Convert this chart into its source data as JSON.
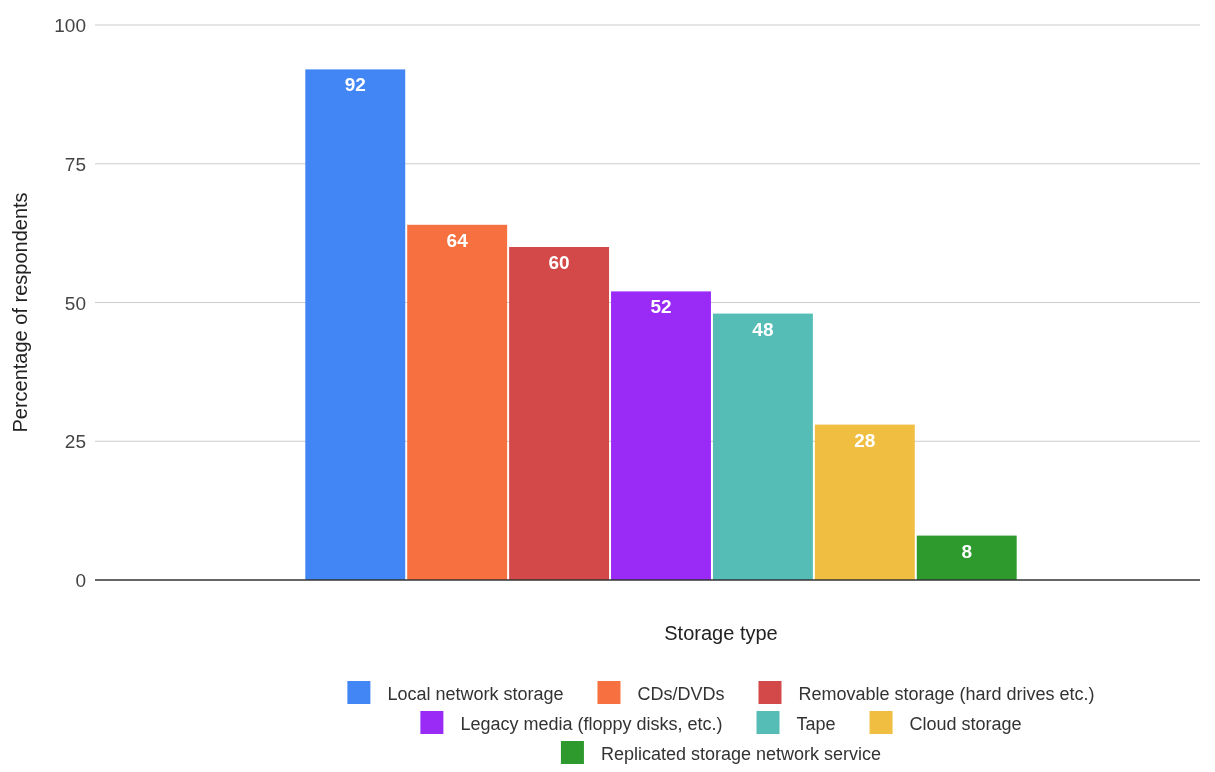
{
  "chart_data": {
    "type": "bar",
    "xlabel": "Storage type",
    "ylabel": "Percentage of respondents",
    "categories": [
      null
    ],
    "series": [
      {
        "name": "Local network storage",
        "color": "#4285f4",
        "values": [
          92
        ]
      },
      {
        "name": "CDs/DVDs",
        "color": "#f7703f",
        "values": [
          64
        ]
      },
      {
        "name": "Removable storage (hard drives etc.)",
        "color": "#d34848",
        "values": [
          60
        ]
      },
      {
        "name": "Legacy media (floppy disks, etc.)",
        "color": "#9a2bf6",
        "values": [
          52
        ]
      },
      {
        "name": "Tape",
        "color": "#55bdb6",
        "values": [
          48
        ]
      },
      {
        "name": "Cloud storage",
        "color": "#f0bf42",
        "values": [
          28
        ]
      },
      {
        "name": "Replicated storage network service",
        "color": "#2e9a2e",
        "values": [
          8
        ]
      }
    ],
    "ylim": [
      0,
      100
    ],
    "yticks": [
      0,
      25,
      50,
      75,
      100
    ],
    "grid": "y",
    "legend": "bottom",
    "data_labels": true
  }
}
